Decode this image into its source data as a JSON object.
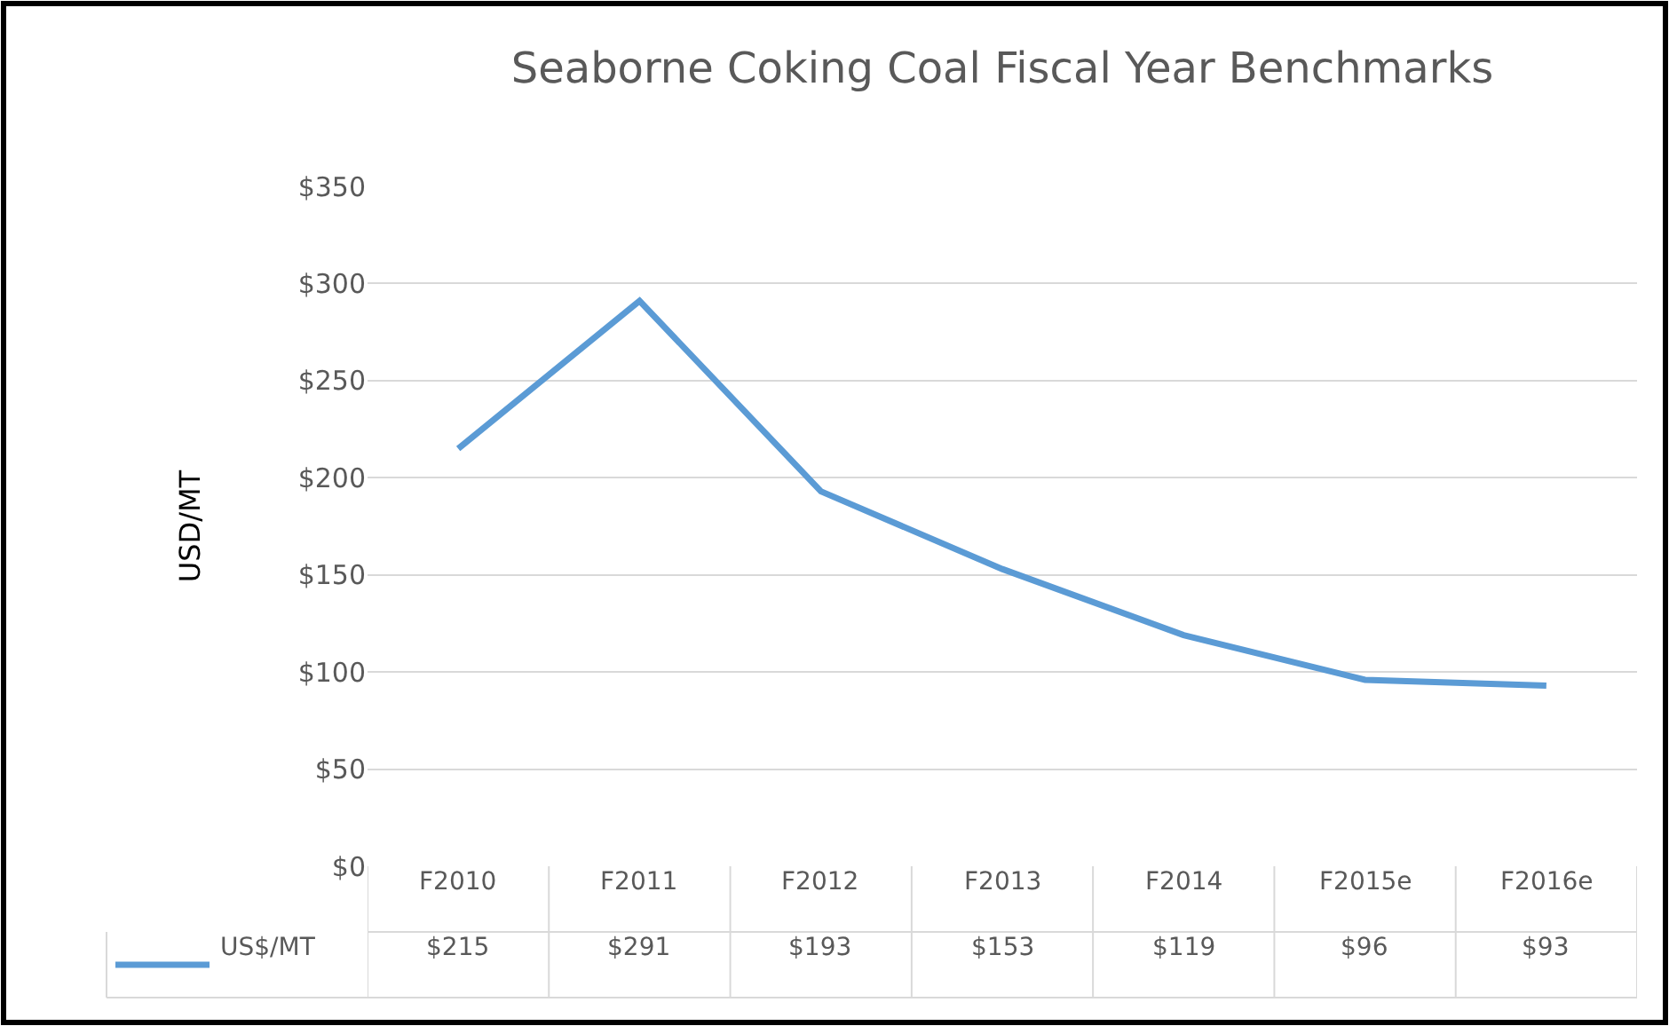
{
  "chart_data": {
    "type": "line",
    "title": "Seaborne Coking Coal Fiscal Year Benchmarks",
    "ylabel": "USD/MT",
    "categories": [
      "F2010",
      "F2011",
      "F2012",
      "F2013",
      "F2014",
      "F2015e",
      "F2016e"
    ],
    "series": [
      {
        "name": "US$/MT",
        "color": "#5b9bd5",
        "values": [
          215,
          291,
          193,
          153,
          119,
          96,
          93
        ],
        "value_labels": [
          "$215",
          "$291",
          "$193",
          "$153",
          "$119",
          "$96",
          "$93"
        ]
      }
    ],
    "ylim": [
      0,
      350
    ],
    "yticks": [
      {
        "value": 0,
        "label": "$0"
      },
      {
        "value": 50,
        "label": "$50"
      },
      {
        "value": 100,
        "label": "$100"
      },
      {
        "value": 150,
        "label": "$150"
      },
      {
        "value": 200,
        "label": "$200"
      },
      {
        "value": 250,
        "label": "$250"
      },
      {
        "value": 300,
        "label": "$300"
      },
      {
        "value": 350,
        "label": "$350"
      }
    ],
    "grid": "y",
    "legend": "bottom",
    "marker": "none",
    "line_style": "solid"
  }
}
